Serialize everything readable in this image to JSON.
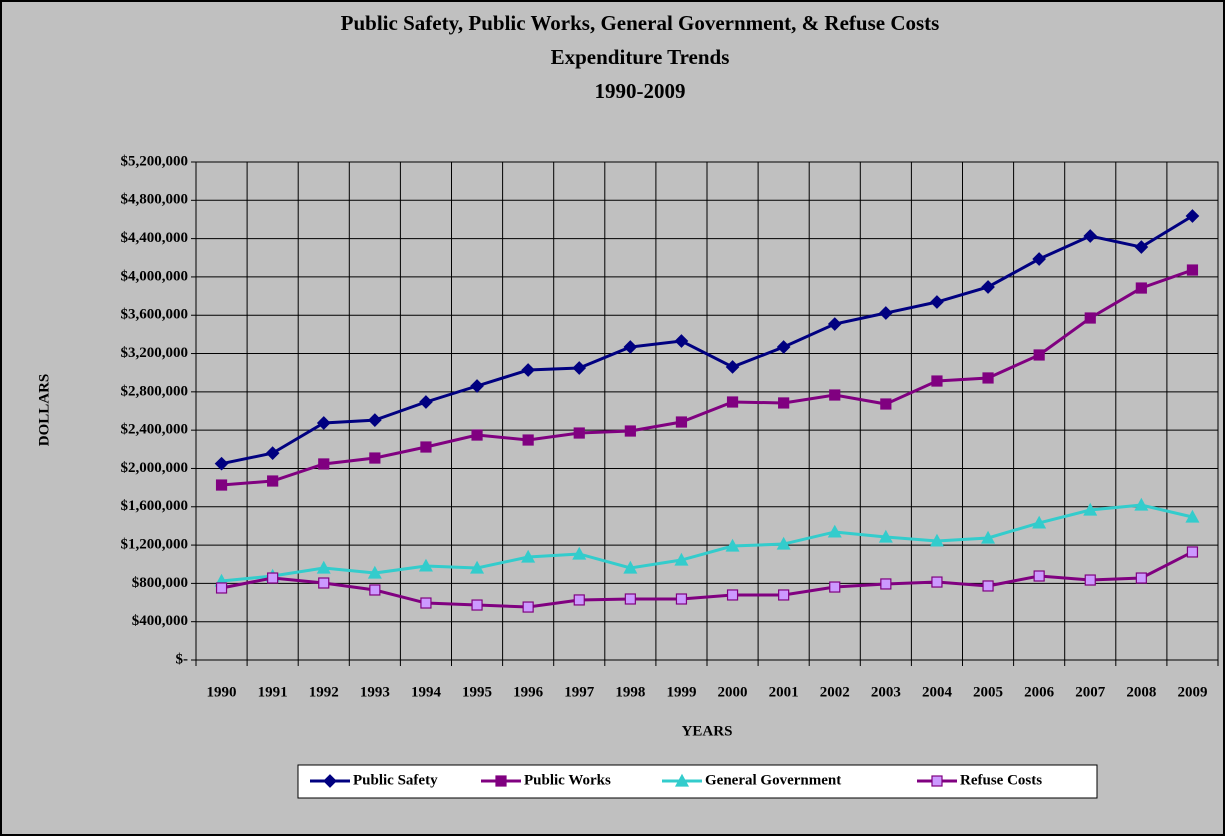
{
  "chart_data": {
    "type": "line",
    "title": [
      "Public Safety, Public Works, General Government, & Refuse Costs",
      "Expenditure Trends",
      "1990-2009"
    ],
    "xlabel": "YEARS",
    "ylabel": "DOLLARS",
    "categories": [
      "1990",
      "1991",
      "1992",
      "1993",
      "1994",
      "1995",
      "1996",
      "1997",
      "1998",
      "1999",
      "2000",
      "2001",
      "2002",
      "2003",
      "2004",
      "2005",
      "2006",
      "2007",
      "2008",
      "2009"
    ],
    "series": [
      {
        "name": "Public Safety",
        "color": "#000080",
        "marker": "diamond",
        "marker_fill": "#000080",
        "values": [
          2050000,
          2160000,
          2475000,
          2505000,
          2694000,
          2861000,
          3028000,
          3049000,
          3268000,
          3331000,
          3060000,
          3268000,
          3508000,
          3623000,
          3738000,
          3895000,
          4187000,
          4427000,
          4312000,
          4636000
        ]
      },
      {
        "name": "Public Works",
        "color": "#800080",
        "marker": "square",
        "marker_fill": "#800080",
        "values": [
          1827000,
          1869000,
          2047000,
          2109000,
          2224000,
          2349000,
          2297000,
          2370000,
          2391000,
          2485000,
          2694000,
          2684000,
          2767000,
          2673000,
          2913000,
          2945000,
          3185000,
          3571000,
          3884000,
          4072000
        ]
      },
      {
        "name": "General Government",
        "color": "#33cccc",
        "marker": "triangle",
        "marker_fill": "#33cccc",
        "values": [
          825000,
          877000,
          961000,
          908000,
          982000,
          961000,
          1075000,
          1107000,
          961000,
          1044000,
          1190000,
          1211000,
          1337000,
          1284000,
          1243000,
          1274000,
          1431000,
          1566000,
          1618000,
          1493000
        ]
      },
      {
        "name": "Refuse Costs",
        "color": "#800080",
        "marker": "square",
        "marker_fill": "#cc99ff",
        "values": [
          752000,
          856000,
          804000,
          731000,
          595000,
          574000,
          553000,
          627000,
          637000,
          637000,
          679000,
          679000,
          762000,
          794000,
          814000,
          773000,
          877000,
          835000,
          856000,
          1128000
        ]
      }
    ],
    "ylim": [
      0,
      5200000
    ],
    "yticks": [
      {
        "value": 0,
        "label": "$-"
      },
      {
        "value": 400000,
        "label": "$400,000"
      },
      {
        "value": 800000,
        "label": "$800,000"
      },
      {
        "value": 1200000,
        "label": "$1,200,000"
      },
      {
        "value": 1600000,
        "label": "$1,600,000"
      },
      {
        "value": 2000000,
        "label": "$2,000,000"
      },
      {
        "value": 2400000,
        "label": "$2,400,000"
      },
      {
        "value": 2800000,
        "label": "$2,800,000"
      },
      {
        "value": 3200000,
        "label": "$3,200,000"
      },
      {
        "value": 3600000,
        "label": "$3,600,000"
      },
      {
        "value": 4000000,
        "label": "$4,000,000"
      },
      {
        "value": 4400000,
        "label": "$4,400,000"
      },
      {
        "value": 4800000,
        "label": "$4,800,000"
      },
      {
        "value": 5200000,
        "label": "$5,200,000"
      }
    ],
    "grid": true,
    "legend": "bottom",
    "background": "#c0c0c0"
  }
}
